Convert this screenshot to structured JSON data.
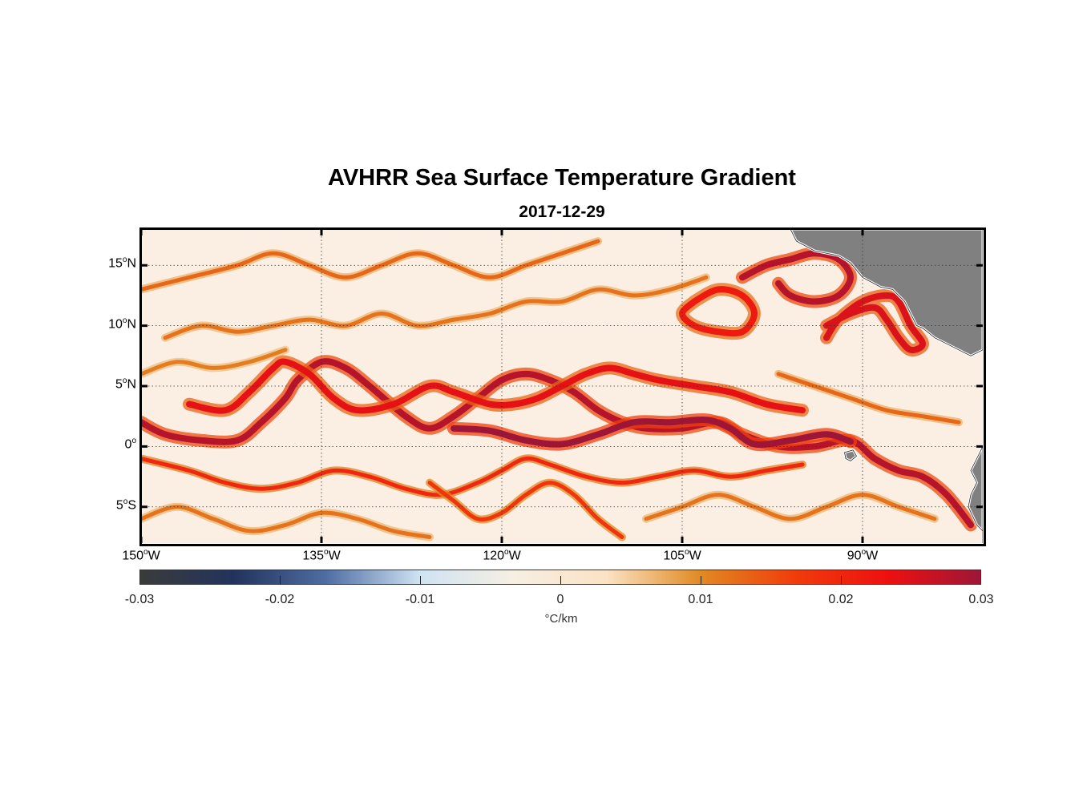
{
  "title": "AVHRR Sea Surface Temperature Gradient",
  "subtitle": "2017-12-29",
  "map": {
    "lat_ticks": [
      {
        "value": 15,
        "deg": "15",
        "hemi": "N"
      },
      {
        "value": 10,
        "deg": "10",
        "hemi": "N"
      },
      {
        "value": 5,
        "deg": "5",
        "hemi": "N"
      },
      {
        "value": 0,
        "deg": "0",
        "hemi": ""
      },
      {
        "value": -5,
        "deg": "5",
        "hemi": "S"
      }
    ],
    "lon_ticks": [
      {
        "value": -150,
        "deg": "150",
        "hemi": "W"
      },
      {
        "value": -135,
        "deg": "135",
        "hemi": "W"
      },
      {
        "value": -120,
        "deg": "120",
        "hemi": "W"
      },
      {
        "value": -105,
        "deg": "105",
        "hemi": "W"
      },
      {
        "value": -90,
        "deg": "90",
        "hemi": "W"
      }
    ],
    "lon_range": [
      -150,
      -80
    ],
    "lat_range": [
      -8,
      18
    ],
    "grid": true,
    "ocean_color": "#fbeee2",
    "land_color": "#808080"
  },
  "colorbar": {
    "range": [
      -0.03,
      0.03
    ],
    "ticks": [
      "-0.03",
      "-0.02",
      "-0.01",
      "0",
      "0.01",
      "0.02",
      "0.03"
    ],
    "unit": "°C/km",
    "colors": [
      "#3b3b3b",
      "#22335c",
      "#4f6ea3",
      "#cfe3f3",
      "#f6efe2",
      "#fbe2c4",
      "#e08a22",
      "#f03d0b",
      "#ee1010",
      "#9e1637"
    ]
  },
  "fronts": [
    {
      "name": "equatorial-front-north",
      "intensity": 0.028,
      "points": [
        [
          -150,
          2
        ],
        [
          -148,
          1
        ],
        [
          -145,
          0.5
        ],
        [
          -142,
          0.5
        ],
        [
          -140,
          2
        ],
        [
          -138,
          4
        ],
        [
          -137,
          5.5
        ],
        [
          -135,
          7
        ],
        [
          -133,
          6.5
        ],
        [
          -131,
          5
        ],
        [
          -128,
          2.5
        ],
        [
          -126,
          1.5
        ],
        [
          -124,
          2.5
        ],
        [
          -122,
          4
        ],
        [
          -120,
          5.5
        ],
        [
          -118,
          6
        ],
        [
          -116,
          5.5
        ],
        [
          -114,
          4.5
        ],
        [
          -112,
          3
        ],
        [
          -110,
          2
        ],
        [
          -108,
          1.5
        ],
        [
          -105,
          1.5
        ],
        [
          -102,
          2
        ],
        [
          -100,
          1
        ],
        [
          -97,
          0
        ],
        [
          -94,
          0
        ],
        [
          -91,
          0.5
        ],
        [
          -89,
          -1
        ],
        [
          -87,
          -2
        ],
        [
          -85,
          -2.5
        ],
        [
          -83,
          -4
        ],
        [
          -81,
          -6.5
        ]
      ]
    },
    {
      "name": "equatorial-front-loops",
      "intensity": 0.024,
      "points": [
        [
          -146,
          3.5
        ],
        [
          -143,
          3
        ],
        [
          -141,
          4.5
        ],
        [
          -139,
          6.5
        ],
        [
          -138,
          7
        ],
        [
          -136,
          6
        ],
        [
          -134,
          4
        ],
        [
          -132,
          3
        ],
        [
          -129,
          3.5
        ],
        [
          -126,
          5
        ],
        [
          -124,
          4.5
        ],
        [
          -121,
          3.5
        ],
        [
          -119,
          3.5
        ],
        [
          -117,
          4
        ],
        [
          -115,
          5
        ],
        [
          -113,
          6
        ],
        [
          -111,
          6.5
        ],
        [
          -109,
          6
        ],
        [
          -107,
          5.5
        ],
        [
          -104,
          5
        ],
        [
          -101,
          4.5
        ],
        [
          -98,
          3.5
        ],
        [
          -95,
          3
        ]
      ]
    },
    {
      "name": "equatorial-front-core",
      "intensity": 0.03,
      "points": [
        [
          -124,
          1.5
        ],
        [
          -121,
          1.3
        ],
        [
          -118,
          0.5
        ],
        [
          -115,
          0.2
        ],
        [
          -112,
          1
        ],
        [
          -109,
          2
        ],
        [
          -106,
          2
        ],
        [
          -103,
          2.2
        ],
        [
          -101,
          1.5
        ],
        [
          -99,
          0.2
        ],
        [
          -96,
          0.5
        ],
        [
          -93,
          1
        ],
        [
          -91,
          0.4
        ]
      ]
    },
    {
      "name": "south-front",
      "intensity": 0.02,
      "points": [
        [
          -150,
          -1
        ],
        [
          -146,
          -2
        ],
        [
          -143,
          -3
        ],
        [
          -140,
          -3.5
        ],
        [
          -137,
          -3
        ],
        [
          -134,
          -2
        ],
        [
          -131,
          -2.5
        ],
        [
          -128,
          -3.5
        ],
        [
          -125,
          -4
        ],
        [
          -122,
          -3
        ],
        [
          -120,
          -2
        ],
        [
          -118,
          -1
        ],
        [
          -116,
          -1.5
        ],
        [
          -113,
          -2.5
        ],
        [
          -110,
          -3
        ],
        [
          -107,
          -2.5
        ],
        [
          -104,
          -2
        ],
        [
          -101,
          -2.5
        ],
        [
          -98,
          -2
        ],
        [
          -95,
          -1.5
        ]
      ]
    },
    {
      "name": "south-front-2",
      "intensity": 0.018,
      "points": [
        [
          -126,
          -3
        ],
        [
          -124,
          -4.5
        ],
        [
          -122,
          -6
        ],
        [
          -120,
          -5.5
        ],
        [
          -118,
          -4
        ],
        [
          -116,
          -3
        ],
        [
          -114,
          -4
        ],
        [
          -112,
          -6
        ],
        [
          -110,
          -7.5
        ]
      ]
    },
    {
      "name": "gulf-front",
      "intensity": 0.028,
      "points": [
        [
          -100,
          14
        ],
        [
          -98,
          15
        ],
        [
          -96,
          15.5
        ],
        [
          -94,
          16
        ],
        [
          -92,
          15.5
        ],
        [
          -91,
          14
        ],
        [
          -92,
          12.5
        ],
        [
          -94,
          12
        ],
        [
          -96,
          12.5
        ],
        [
          -97,
          13.5
        ]
      ]
    },
    {
      "name": "eddy-north",
      "intensity": 0.022,
      "points": [
        [
          -104,
          12
        ],
        [
          -102,
          13
        ],
        [
          -100,
          12.5
        ],
        [
          -99,
          11
        ],
        [
          -100,
          9.5
        ],
        [
          -102,
          9.5
        ],
        [
          -104,
          10
        ],
        [
          -105,
          11
        ],
        [
          -104,
          12
        ]
      ]
    },
    {
      "name": "papagayo-front",
      "intensity": 0.025,
      "points": [
        [
          -93,
          10
        ],
        [
          -91,
          11
        ],
        [
          -89,
          11.5
        ],
        [
          -88,
          10.5
        ],
        [
          -87,
          9
        ],
        [
          -86,
          8
        ],
        [
          -85,
          8.5
        ],
        [
          -86,
          10
        ],
        [
          -87,
          12
        ],
        [
          -88,
          12.5
        ],
        [
          -90,
          12
        ],
        [
          -92,
          10.5
        ],
        [
          -93,
          9
        ]
      ]
    },
    {
      "name": "north-weak-1",
      "intensity": 0.013,
      "points": [
        [
          -150,
          13
        ],
        [
          -146,
          14
        ],
        [
          -142,
          15
        ],
        [
          -139,
          16
        ],
        [
          -136,
          15
        ],
        [
          -133,
          14
        ],
        [
          -130,
          15
        ],
        [
          -127,
          16
        ],
        [
          -124,
          15
        ],
        [
          -121,
          14
        ],
        [
          -118,
          15
        ],
        [
          -115,
          16
        ],
        [
          -112,
          17
        ]
      ]
    },
    {
      "name": "north-weak-2",
      "intensity": 0.012,
      "points": [
        [
          -148,
          9
        ],
        [
          -145,
          10
        ],
        [
          -142,
          9.5
        ],
        [
          -139,
          10
        ],
        [
          -136,
          10.5
        ],
        [
          -133,
          10
        ],
        [
          -130,
          11
        ],
        [
          -127,
          10
        ],
        [
          -124,
          10.5
        ],
        [
          -121,
          11
        ],
        [
          -118,
          12
        ],
        [
          -115,
          12
        ],
        [
          -112,
          13
        ],
        [
          -109,
          12.5
        ],
        [
          -106,
          13
        ],
        [
          -103,
          14
        ]
      ]
    },
    {
      "name": "north-weak-3",
      "intensity": 0.011,
      "points": [
        [
          -150,
          6
        ],
        [
          -147,
          7
        ],
        [
          -144,
          6.5
        ],
        [
          -141,
          7
        ],
        [
          -138,
          8
        ]
      ]
    },
    {
      "name": "south-weak",
      "intensity": 0.012,
      "points": [
        [
          -150,
          -6
        ],
        [
          -147,
          -5
        ],
        [
          -144,
          -6
        ],
        [
          -141,
          -7
        ],
        [
          -138,
          -6.5
        ],
        [
          -135,
          -5.5
        ],
        [
          -132,
          -6
        ],
        [
          -129,
          -7
        ],
        [
          -126,
          -7.5
        ]
      ]
    },
    {
      "name": "south-weak-2",
      "intensity": 0.012,
      "points": [
        [
          -108,
          -6
        ],
        [
          -105,
          -5
        ],
        [
          -102,
          -4
        ],
        [
          -99,
          -5
        ],
        [
          -96,
          -6
        ],
        [
          -93,
          -5
        ],
        [
          -90,
          -4
        ],
        [
          -87,
          -5
        ],
        [
          -84,
          -6
        ]
      ]
    },
    {
      "name": "east-weak",
      "intensity": 0.013,
      "points": [
        [
          -97,
          6
        ],
        [
          -94,
          5
        ],
        [
          -91,
          4
        ],
        [
          -88,
          3
        ],
        [
          -85,
          2.5
        ],
        [
          -82,
          2
        ]
      ]
    }
  ],
  "land": [
    {
      "name": "central-america",
      "points": [
        [
          -96,
          18
        ],
        [
          -95.5,
          17
        ],
        [
          -94,
          16.2
        ],
        [
          -92,
          15.8
        ],
        [
          -91,
          15.2
        ],
        [
          -90,
          14
        ],
        [
          -88.5,
          13.2
        ],
        [
          -87.5,
          13
        ],
        [
          -86.5,
          12
        ],
        [
          -86,
          11
        ],
        [
          -85.5,
          10
        ],
        [
          -85,
          9.8
        ],
        [
          -84,
          9
        ],
        [
          -83,
          8.5
        ],
        [
          -82,
          8
        ],
        [
          -81,
          7.5
        ],
        [
          -80,
          8
        ],
        [
          -80,
          18
        ]
      ]
    },
    {
      "name": "south-america",
      "points": [
        [
          -80,
          0
        ],
        [
          -80.5,
          -1
        ],
        [
          -81,
          -2
        ],
        [
          -80.5,
          -3
        ],
        [
          -81,
          -4
        ],
        [
          -81.2,
          -5
        ],
        [
          -80.5,
          -6.5
        ],
        [
          -80,
          -7
        ],
        [
          -80,
          -8
        ],
        [
          -80,
          0
        ]
      ]
    },
    {
      "name": "galapagos",
      "points": [
        [
          -91.5,
          -0.5
        ],
        [
          -90.8,
          -0.3
        ],
        [
          -90.5,
          -0.8
        ],
        [
          -91,
          -1.2
        ],
        [
          -91.4,
          -1
        ]
      ]
    }
  ]
}
